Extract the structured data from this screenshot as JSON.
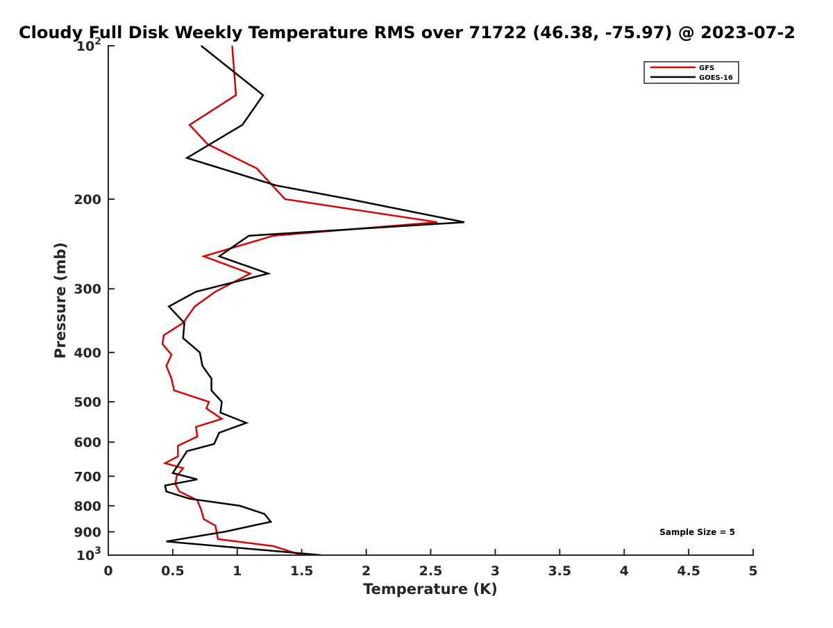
{
  "chart_data": {
    "type": "line",
    "title": "Cloudy Full Disk Weekly Temperature RMS over 71722 (46.38, -75.97) @ 2023-07-2",
    "xlabel": "Temperature (K)",
    "ylabel": "Pressure (mb)",
    "xlim": [
      0,
      5
    ],
    "ylim": [
      1000,
      100
    ],
    "y_scale": "log",
    "x_ticks": [
      "0",
      "0.5",
      "1",
      "1.5",
      "2",
      "2.5",
      "3",
      "3.5",
      "4",
      "4.5",
      "5"
    ],
    "x_tick_values": [
      0,
      0.5,
      1,
      1.5,
      2,
      2.5,
      3,
      3.5,
      4,
      4.5,
      5
    ],
    "y_ticks": [
      {
        "value": 100,
        "base": "10",
        "exp": "2"
      },
      {
        "value": 200,
        "label": "200"
      },
      {
        "value": 300,
        "label": "300"
      },
      {
        "value": 400,
        "label": "400"
      },
      {
        "value": 500,
        "label": "500"
      },
      {
        "value": 600,
        "label": "600"
      },
      {
        "value": 700,
        "label": "700"
      },
      {
        "value": 800,
        "label": "800"
      },
      {
        "value": 900,
        "label": "900"
      },
      {
        "value": 1000,
        "base": "10",
        "exp": "3"
      }
    ],
    "legend_position": "top-right",
    "grid": false,
    "annotation": "Sample Size = 5",
    "series": [
      {
        "name": "GFS",
        "color": "#dd0000",
        "points": [
          [
            0.96,
            100
          ],
          [
            0.99,
            125
          ],
          [
            0.63,
            143
          ],
          [
            0.77,
            156
          ],
          [
            1.15,
            174
          ],
          [
            1.37,
            200
          ],
          [
            2.55,
            222
          ],
          [
            1.28,
            236
          ],
          [
            0.74,
            259
          ],
          [
            1.1,
            280
          ],
          [
            0.83,
            304
          ],
          [
            0.67,
            325
          ],
          [
            0.58,
            350
          ],
          [
            0.43,
            370
          ],
          [
            0.42,
            385
          ],
          [
            0.49,
            404
          ],
          [
            0.45,
            425
          ],
          [
            0.49,
            450
          ],
          [
            0.51,
            475
          ],
          [
            0.78,
            500
          ],
          [
            0.76,
            515
          ],
          [
            0.88,
            540
          ],
          [
            0.68,
            560
          ],
          [
            0.69,
            585
          ],
          [
            0.54,
            610
          ],
          [
            0.54,
            640
          ],
          [
            0.44,
            660
          ],
          [
            0.58,
            675
          ],
          [
            0.53,
            700
          ],
          [
            0.52,
            725
          ],
          [
            0.55,
            750
          ],
          [
            0.69,
            780
          ],
          [
            0.72,
            815
          ],
          [
            0.74,
            850
          ],
          [
            0.83,
            875
          ],
          [
            0.84,
            900
          ],
          [
            0.85,
            930
          ],
          [
            1.28,
            960
          ],
          [
            1.5,
            1000
          ]
        ]
      },
      {
        "name": "GOES-16",
        "color": "#000000",
        "points": [
          [
            0.72,
            100
          ],
          [
            1.2,
            125
          ],
          [
            1.04,
            143
          ],
          [
            0.61,
            166
          ],
          [
            1.3,
            188
          ],
          [
            1.87,
            200
          ],
          [
            2.76,
            222
          ],
          [
            1.09,
            236
          ],
          [
            0.86,
            259
          ],
          [
            1.24,
            280
          ],
          [
            0.68,
            304
          ],
          [
            0.47,
            325
          ],
          [
            0.59,
            350
          ],
          [
            0.58,
            375
          ],
          [
            0.71,
            400
          ],
          [
            0.73,
            425
          ],
          [
            0.8,
            450
          ],
          [
            0.8,
            475
          ],
          [
            0.88,
            500
          ],
          [
            0.87,
            525
          ],
          [
            1.07,
            550
          ],
          [
            0.86,
            575
          ],
          [
            0.82,
            605
          ],
          [
            0.61,
            625
          ],
          [
            0.55,
            660
          ],
          [
            0.5,
            690
          ],
          [
            0.69,
            710
          ],
          [
            0.44,
            730
          ],
          [
            0.45,
            750
          ],
          [
            0.63,
            775
          ],
          [
            1.02,
            800
          ],
          [
            1.21,
            830
          ],
          [
            1.26,
            860
          ],
          [
            0.9,
            900
          ],
          [
            0.45,
            940
          ],
          [
            1.65,
            1000
          ]
        ]
      }
    ]
  }
}
